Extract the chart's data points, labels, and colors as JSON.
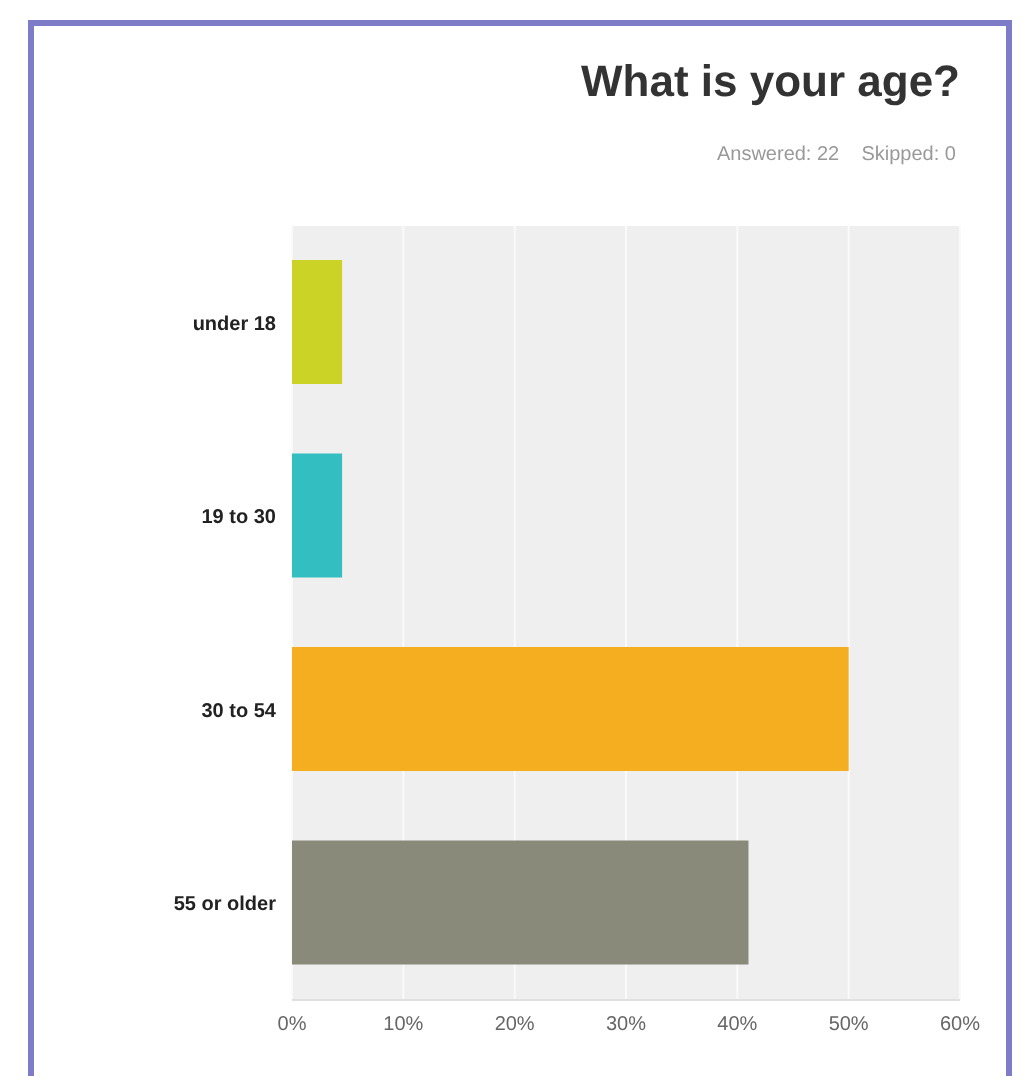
{
  "chart_data": {
    "type": "bar",
    "orientation": "horizontal",
    "title": "What is your age?",
    "subtitle": "Answered: 22    Skipped: 0",
    "categories": [
      "under 18",
      "19 to 30",
      "30 to 54",
      "55 or older"
    ],
    "values": [
      4.5,
      4.5,
      50,
      41
    ],
    "colors": [
      "#ccd327",
      "#33bfc1",
      "#f5ae1f",
      "#8a8a7a"
    ],
    "xlim": [
      0,
      60
    ],
    "xticks": [
      {
        "value": 0,
        "label": "0%"
      },
      {
        "value": 10,
        "label": "10%"
      },
      {
        "value": 20,
        "label": "20%"
      },
      {
        "value": 30,
        "label": "30%"
      },
      {
        "value": 40,
        "label": "40%"
      },
      {
        "value": 50,
        "label": "50%"
      },
      {
        "value": 60,
        "label": "60%"
      }
    ],
    "grid": "x",
    "legend": false
  }
}
